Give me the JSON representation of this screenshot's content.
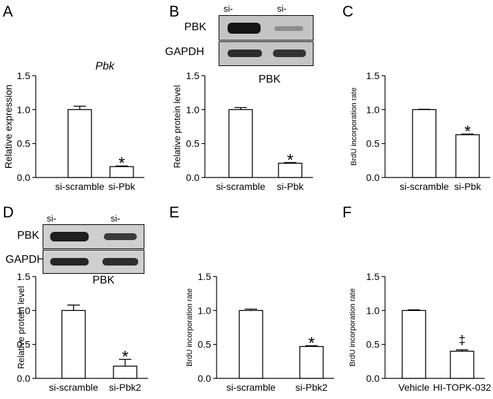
{
  "panels": {
    "A": "A",
    "B": "B",
    "C": "C",
    "D": "D",
    "E": "E",
    "F": "F"
  },
  "blot_B": {
    "lanes": [
      "si-scramble",
      "si-Pbk"
    ],
    "rows": [
      "PBK",
      "GAPDH"
    ]
  },
  "blot_D": {
    "lanes": [
      "si-scramble",
      "si-Pbk2"
    ],
    "rows": [
      "PBK",
      "GAPDH"
    ]
  },
  "chart_data": [
    {
      "id": "A",
      "type": "bar",
      "title": "Pbk",
      "title_italic": true,
      "ylabel": "Relative expression",
      "xlabel": "",
      "categories": [
        "si-scramble",
        "si-Pbk"
      ],
      "values": [
        1.0,
        0.16
      ],
      "errors": [
        0.05,
        0.01
      ],
      "ylim": [
        0,
        1.5
      ],
      "yticks": [
        "0.0",
        "0.5",
        "1.0",
        "1.5"
      ],
      "annotations": [
        "",
        "*"
      ]
    },
    {
      "id": "B",
      "type": "bar",
      "title": "PBK",
      "title_italic": false,
      "ylabel": "Relative protein level",
      "xlabel": "",
      "categories": [
        "si-scramble",
        "si-Pbk"
      ],
      "values": [
        1.0,
        0.21
      ],
      "errors": [
        0.03,
        0.01
      ],
      "ylim": [
        0,
        1.5
      ],
      "yticks": [
        "0.0",
        "0.5",
        "1.0",
        "1.5"
      ],
      "annotations": [
        "",
        "*"
      ]
    },
    {
      "id": "C",
      "type": "bar",
      "title": "",
      "title_italic": false,
      "ylabel": "BrdU incorporation rate",
      "xlabel": "",
      "categories": [
        "si-scramble",
        "si-Pbk"
      ],
      "values": [
        1.0,
        0.63
      ],
      "errors": [
        0.005,
        0.01
      ],
      "ylim": [
        0,
        1.5
      ],
      "yticks": [
        "0.0",
        "0.5",
        "1.0",
        "1.5"
      ],
      "annotations": [
        "",
        "*"
      ]
    },
    {
      "id": "D",
      "type": "bar",
      "title": "PBK",
      "title_italic": false,
      "ylabel": "Relative protein level",
      "xlabel": "",
      "categories": [
        "si-scramble",
        "si-Pbk2"
      ],
      "values": [
        1.0,
        0.18
      ],
      "errors": [
        0.08,
        0.1
      ],
      "ylim": [
        0,
        1.5
      ],
      "yticks": [
        "0.0",
        "0.5",
        "1.0",
        "1.5"
      ],
      "annotations": [
        "",
        "*"
      ]
    },
    {
      "id": "E",
      "type": "bar",
      "title": "",
      "title_italic": false,
      "ylabel": "BrdU incorporation rate",
      "xlabel": "",
      "categories": [
        "si-scramble",
        "si-Pbk2"
      ],
      "values": [
        1.0,
        0.47
      ],
      "errors": [
        0.02,
        0.01
      ],
      "ylim": [
        0,
        1.5
      ],
      "yticks": [
        "0.0",
        "0.5",
        "1.0",
        "1.5"
      ],
      "annotations": [
        "",
        "*"
      ]
    },
    {
      "id": "F",
      "type": "bar",
      "title": "",
      "title_italic": false,
      "ylabel": "BrdU incorporation rate",
      "xlabel": "",
      "categories": [
        "Vehicle",
        "HI-TOPK-032"
      ],
      "values": [
        1.0,
        0.4
      ],
      "errors": [
        0.01,
        0.02
      ],
      "ylim": [
        0,
        1.5
      ],
      "yticks": [
        "0.0",
        "0.5",
        "1.0",
        "1.5"
      ],
      "annotations": [
        "",
        "‡"
      ]
    }
  ]
}
